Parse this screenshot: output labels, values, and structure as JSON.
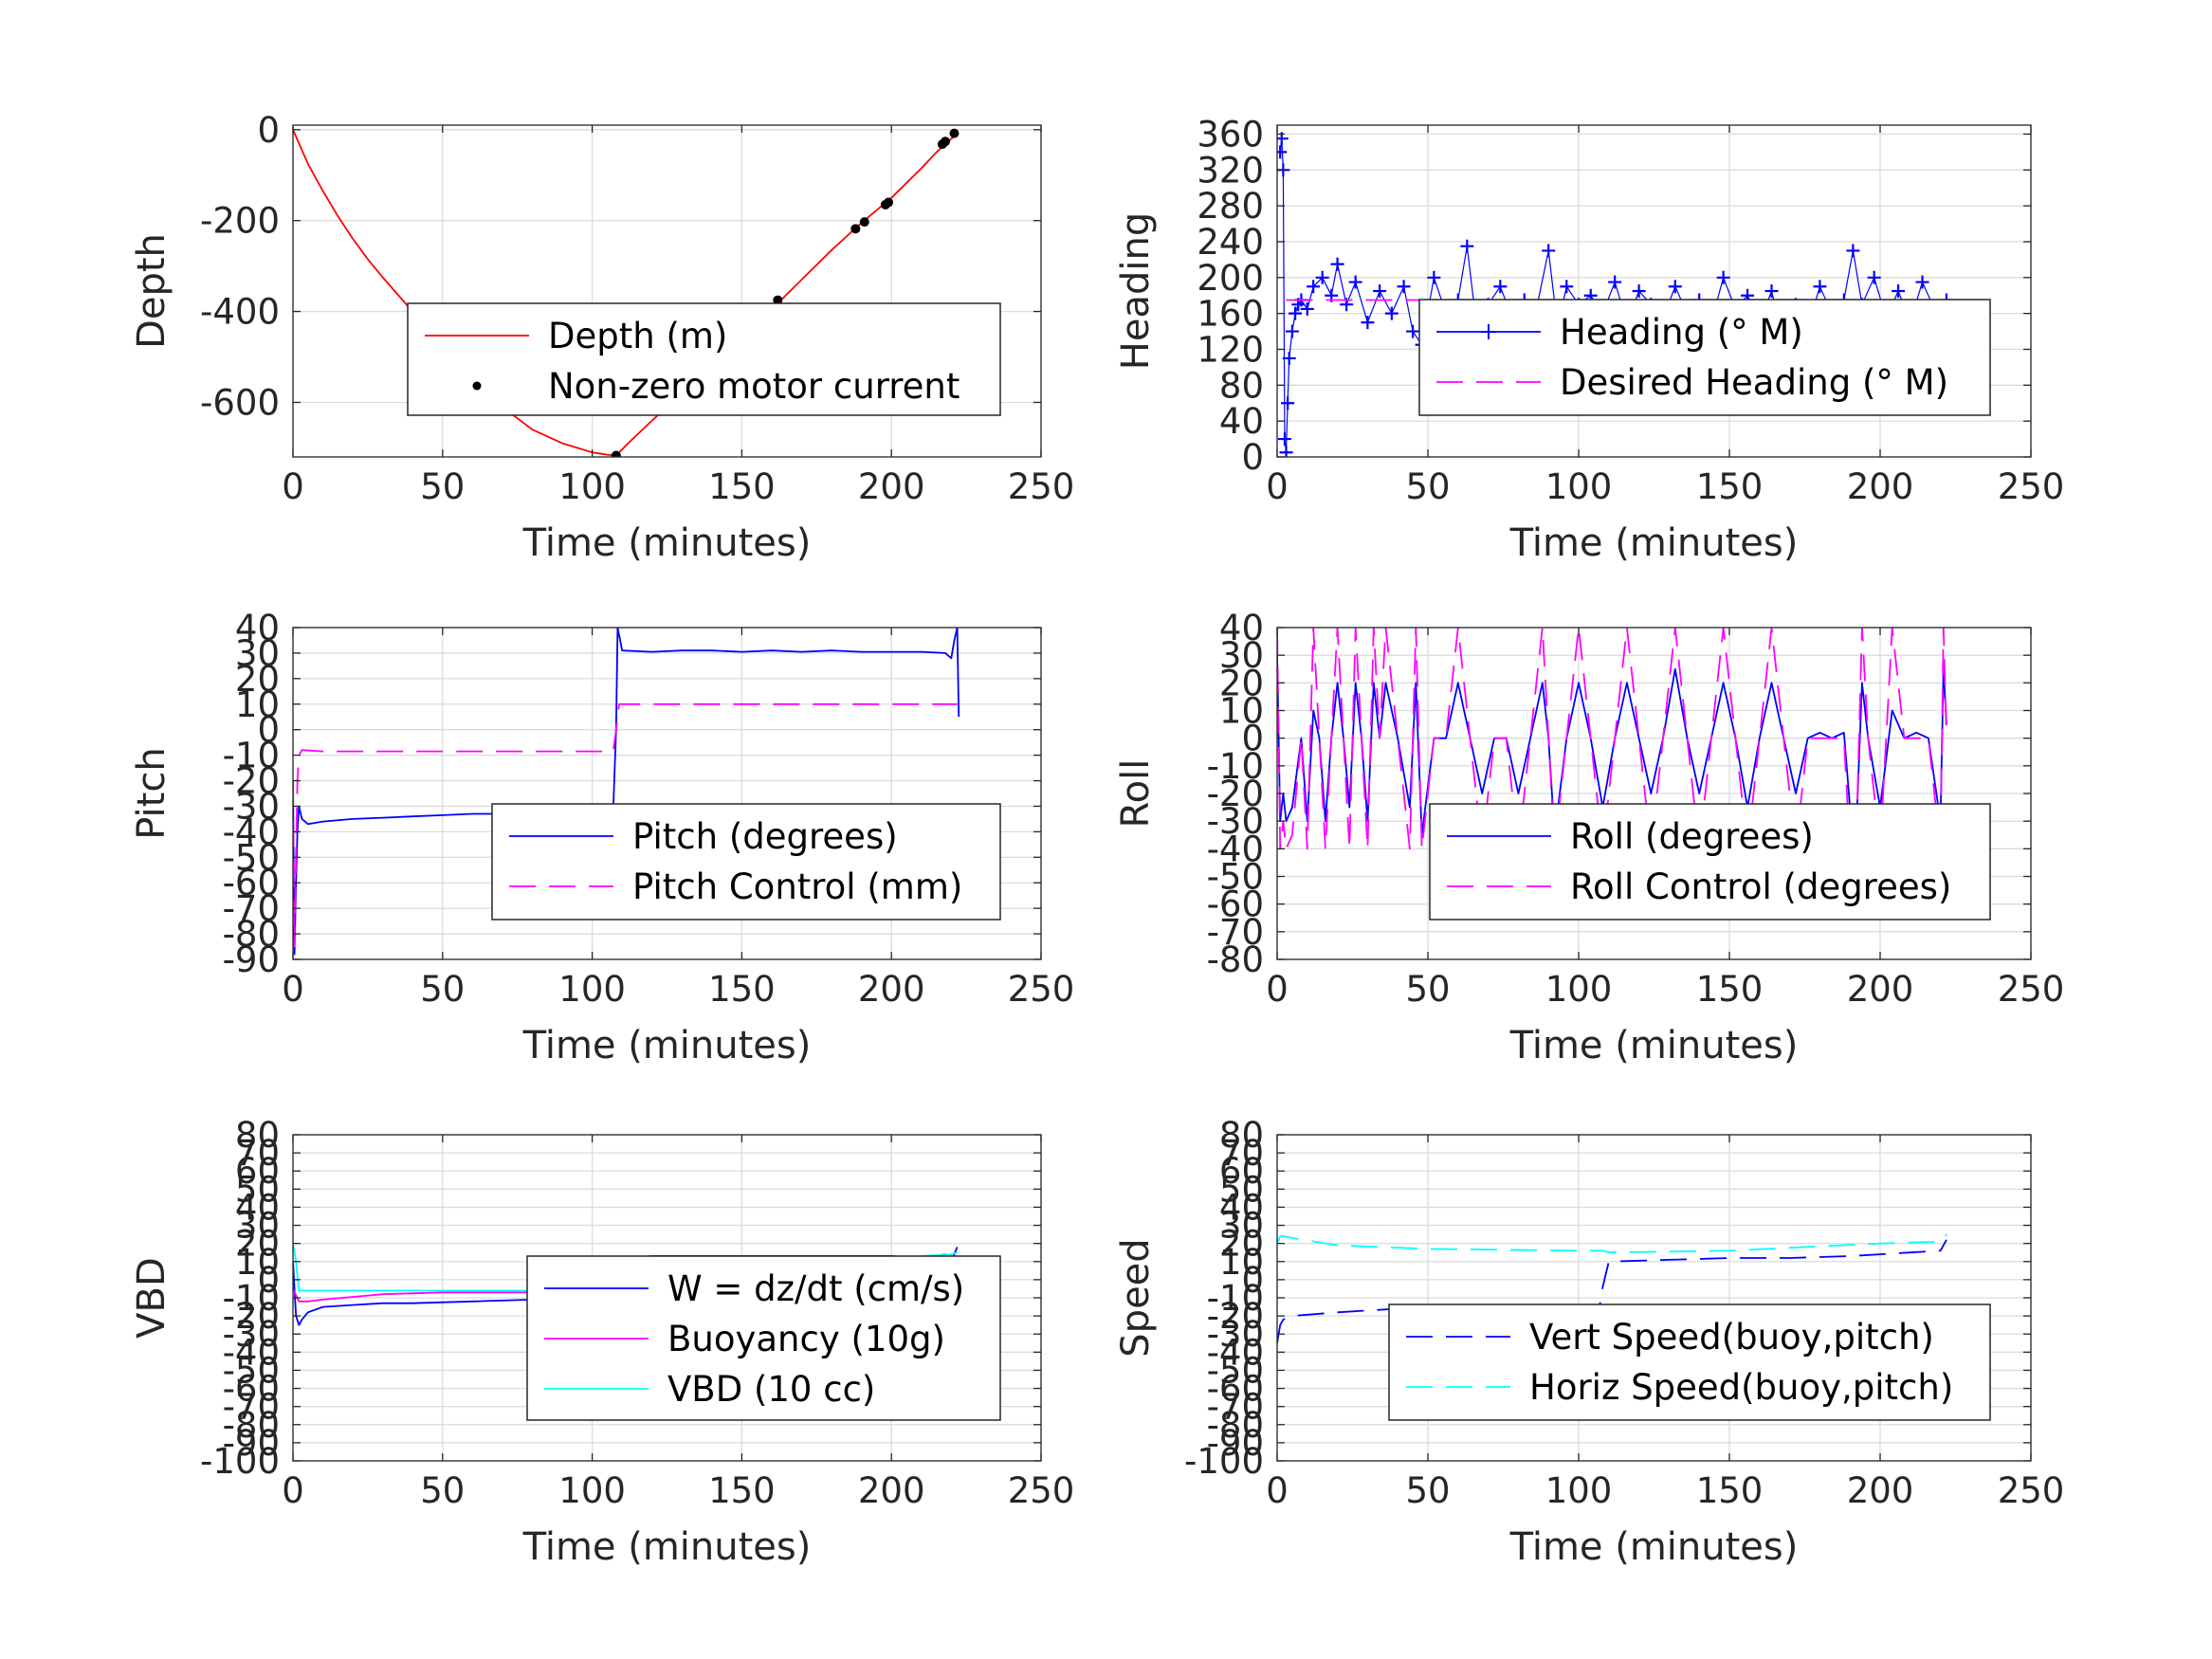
{
  "chart_data": [
    {
      "id": "depth",
      "type": "line",
      "xlabel": "Time (minutes)",
      "ylabel": "Depth",
      "xlim": [
        0,
        250
      ],
      "ylim": [
        -720,
        10
      ],
      "xticks": [
        0,
        50,
        100,
        150,
        200,
        250
      ],
      "yticks": [
        0,
        -200,
        -400,
        -600
      ],
      "legend_position": "center-right",
      "series": [
        {
          "name": "Depth (m)",
          "color": "#ff0000",
          "style": "solid",
          "marker": "none",
          "x": [
            0,
            2,
            5,
            10,
            15,
            20,
            25,
            30,
            40,
            50,
            60,
            70,
            80,
            90,
            100,
            105,
            108,
            112,
            120,
            130,
            140,
            150,
            160,
            170,
            180,
            190,
            200,
            210,
            215,
            220,
            222
          ],
          "y": [
            0,
            -30,
            -75,
            -135,
            -190,
            -240,
            -285,
            -325,
            -400,
            -480,
            -550,
            -610,
            -660,
            -690,
            -710,
            -715,
            -717,
            -690,
            -640,
            -580,
            -520,
            -455,
            -395,
            -330,
            -265,
            -205,
            -150,
            -85,
            -50,
            -20,
            -10
          ]
        },
        {
          "name": "Non-zero motor current",
          "color": "#000000",
          "style": "none",
          "marker": "dot",
          "x": [
            108,
            162,
            188,
            191,
            198,
            199,
            217,
            218,
            221
          ],
          "y": [
            -717,
            -375,
            -218,
            -203,
            -165,
            -160,
            -32,
            -26,
            -8
          ]
        }
      ]
    },
    {
      "id": "heading",
      "type": "scatter",
      "xlabel": "Time (minutes)",
      "ylabel": "Heading",
      "xlim": [
        0,
        250
      ],
      "ylim": [
        0,
        370
      ],
      "xticks": [
        0,
        50,
        100,
        150,
        200,
        250
      ],
      "yticks": [
        0,
        40,
        80,
        120,
        160,
        200,
        240,
        280,
        320,
        360
      ],
      "legend_position": "center-right",
      "series": [
        {
          "name": "Heading (° M)",
          "color": "#0000ff",
          "style": "none",
          "marker": "plus",
          "x": [
            1,
            1.5,
            2,
            2.5,
            3,
            3.5,
            4,
            5,
            6,
            7,
            8,
            10,
            12,
            15,
            18,
            20,
            23,
            26,
            30,
            34,
            38,
            42,
            45,
            48,
            52,
            56,
            60,
            63,
            66,
            70,
            74,
            78,
            82,
            86,
            90,
            93,
            96,
            100,
            104,
            108,
            112,
            116,
            120,
            124,
            128,
            132,
            136,
            140,
            144,
            148,
            152,
            156,
            160,
            164,
            168,
            172,
            176,
            180,
            184,
            188,
            191,
            194,
            198,
            202,
            206,
            210,
            214,
            218,
            222
          ],
          "y": [
            340,
            355,
            320,
            20,
            5,
            60,
            110,
            140,
            160,
            170,
            175,
            165,
            190,
            200,
            180,
            215,
            170,
            195,
            150,
            185,
            160,
            190,
            140,
            125,
            200,
            160,
            175,
            235,
            150,
            170,
            190,
            155,
            175,
            165,
            230,
            145,
            190,
            170,
            180,
            160,
            195,
            150,
            185,
            170,
            155,
            190,
            160,
            175,
            150,
            200,
            165,
            180,
            150,
            185,
            130,
            170,
            145,
            190,
            160,
            175,
            230,
            170,
            200,
            155,
            185,
            150,
            195,
            165,
            175
          ]
        },
        {
          "name": "Desired Heading (° M)",
          "color": "#ff00ff",
          "style": "dashed",
          "marker": "none",
          "x": [
            3,
            222
          ],
          "y": [
            175,
            175
          ]
        }
      ]
    },
    {
      "id": "pitch",
      "type": "line",
      "xlabel": "Time (minutes)",
      "ylabel": "Pitch",
      "xlim": [
        0,
        250
      ],
      "ylim": [
        -90,
        40
      ],
      "xticks": [
        0,
        50,
        100,
        150,
        200,
        250
      ],
      "yticks": [
        40,
        30,
        20,
        10,
        0,
        -10,
        -20,
        -30,
        -40,
        -50,
        -60,
        -70,
        -80,
        -90
      ],
      "legend_position": "center-right",
      "series": [
        {
          "name": "Pitch (degrees)",
          "color": "#0000ff",
          "style": "solid",
          "marker": "none",
          "x": [
            0,
            0.5,
            1,
            1.5,
            2,
            3,
            5,
            10,
            20,
            30,
            40,
            50,
            60,
            70,
            80,
            90,
            100,
            107,
            108,
            108.5,
            110,
            120,
            130,
            140,
            150,
            160,
            170,
            180,
            190,
            200,
            210,
            218,
            220,
            221,
            222,
            222.5
          ],
          "y": [
            -20,
            -88,
            -60,
            -40,
            -30,
            -35,
            -37,
            -36,
            -35,
            -34.5,
            -34,
            -33.5,
            -33,
            -33,
            -32.5,
            -32,
            -32,
            -32,
            0,
            40,
            31,
            30.5,
            31,
            31,
            30.5,
            31,
            30.5,
            31,
            30.5,
            30.5,
            30.5,
            30,
            28,
            35,
            40,
            5
          ]
        },
        {
          "name": "Pitch Control (mm)",
          "color": "#ff00ff",
          "style": "dashed",
          "marker": "none",
          "x": [
            0,
            0.5,
            1,
            1.5,
            2,
            3,
            10,
            50,
            100,
            107,
            108,
            109,
            150,
            200,
            222
          ],
          "y": [
            -20,
            -85,
            -50,
            -20,
            -10,
            -8,
            -8.5,
            -8.5,
            -8.5,
            -8.5,
            0,
            10,
            10,
            10,
            10
          ]
        }
      ]
    },
    {
      "id": "roll",
      "type": "line",
      "xlabel": "Time (minutes)",
      "ylabel": "Roll",
      "xlim": [
        0,
        250
      ],
      "ylim": [
        -80,
        40
      ],
      "xticks": [
        0,
        50,
        100,
        150,
        200,
        250
      ],
      "yticks": [
        40,
        30,
        20,
        10,
        0,
        -10,
        -20,
        -30,
        -40,
        -50,
        -60,
        -70,
        -80
      ],
      "legend_position": "center-right",
      "series": [
        {
          "name": "Roll (degrees)",
          "color": "#0000ff",
          "style": "solid",
          "marker": "none",
          "x": [
            0,
            1,
            2,
            3,
            5,
            8,
            10,
            12,
            14,
            16,
            18,
            20,
            22,
            24,
            26,
            28,
            30,
            32,
            34,
            36,
            40,
            44,
            46,
            48,
            52,
            56,
            60,
            64,
            68,
            72,
            76,
            80,
            84,
            88,
            90,
            92,
            96,
            100,
            104,
            108,
            112,
            116,
            120,
            124,
            128,
            132,
            136,
            140,
            144,
            148,
            152,
            156,
            160,
            164,
            168,
            172,
            176,
            180,
            184,
            188,
            190,
            192,
            194,
            196,
            200,
            204,
            208,
            212,
            216,
            220,
            221,
            222
          ],
          "y": [
            30,
            -30,
            -20,
            -30,
            -25,
            0,
            -30,
            10,
            0,
            -30,
            0,
            20,
            0,
            -25,
            20,
            0,
            -30,
            20,
            0,
            20,
            0,
            -25,
            20,
            -35,
            0,
            0,
            20,
            0,
            -20,
            0,
            0,
            -20,
            0,
            20,
            0,
            -35,
            0,
            20,
            0,
            -25,
            0,
            20,
            0,
            -20,
            0,
            25,
            0,
            -20,
            0,
            20,
            0,
            -25,
            0,
            20,
            0,
            -20,
            0,
            2,
            0,
            2,
            -25,
            -35,
            20,
            0,
            -25,
            10,
            0,
            2,
            0,
            -30,
            25,
            5
          ]
        },
        {
          "name": "Roll Control (degrees)",
          "color": "#ff00ff",
          "style": "dashed",
          "marker": "none",
          "x": [
            0,
            1,
            2,
            3,
            5,
            8,
            10,
            12,
            14,
            16,
            18,
            20,
            22,
            24,
            26,
            28,
            30,
            32,
            34,
            36,
            40,
            44,
            46,
            48,
            52,
            56,
            60,
            64,
            68,
            72,
            76,
            80,
            84,
            88,
            90,
            92,
            96,
            100,
            104,
            108,
            112,
            116,
            120,
            124,
            128,
            132,
            136,
            140,
            144,
            148,
            152,
            156,
            160,
            164,
            168,
            172,
            176,
            180,
            184,
            188,
            190,
            192,
            194,
            196,
            200,
            204,
            208,
            212,
            216,
            220,
            221,
            222
          ],
          "y": [
            40,
            -40,
            -30,
            -40,
            -35,
            0,
            -40,
            40,
            0,
            -40,
            0,
            40,
            0,
            -40,
            40,
            0,
            -40,
            40,
            0,
            40,
            0,
            -40,
            40,
            -40,
            0,
            0,
            40,
            0,
            -40,
            0,
            0,
            -40,
            0,
            40,
            0,
            -40,
            0,
            40,
            0,
            -40,
            0,
            40,
            0,
            -40,
            0,
            40,
            0,
            -40,
            0,
            40,
            0,
            -40,
            0,
            40,
            0,
            -40,
            0,
            0,
            0,
            0,
            -40,
            -40,
            40,
            0,
            -40,
            40,
            0,
            0,
            0,
            -40,
            40,
            0
          ]
        }
      ]
    },
    {
      "id": "vbd",
      "type": "line",
      "xlabel": "Time (minutes)",
      "ylabel": "VBD",
      "xlim": [
        0,
        250
      ],
      "ylim": [
        -100,
        80
      ],
      "xticks": [
        0,
        50,
        100,
        150,
        200,
        250
      ],
      "yticks": [
        80,
        70,
        60,
        50,
        40,
        30,
        20,
        10,
        0,
        -10,
        -20,
        -30,
        -40,
        -50,
        -60,
        -70,
        -80,
        -90,
        -100
      ],
      "ytick_labels": [
        "80",
        "70",
        "60",
        "50",
        "40",
        "30",
        "20",
        "10",
        "0",
        "-10",
        "-20",
        "-30",
        "-40",
        "-50",
        "-60",
        "-70",
        "-80",
        "-90",
        "-100"
      ],
      "legend_position": "center-right",
      "series": [
        {
          "name": "W = dz/dt (cm/s)",
          "color": "#0000ff",
          "style": "solid",
          "marker": "none",
          "x": [
            0,
            1,
            2,
            3,
            5,
            10,
            20,
            30,
            40,
            60,
            80,
            100,
            107,
            108,
            109,
            110,
            120,
            140,
            160,
            180,
            200,
            210,
            218,
            220,
            222
          ],
          "y": [
            10,
            -20,
            -25,
            -22,
            -18,
            -15,
            -14,
            -13,
            -13,
            -12,
            -11,
            -10,
            -10,
            -5,
            10,
            12,
            13,
            13,
            13,
            13,
            13,
            12,
            14,
            10,
            18
          ]
        },
        {
          "name": "Buoyancy (10g)",
          "color": "#ff00ff",
          "style": "solid",
          "marker": "none",
          "x": [
            0,
            2,
            5,
            10,
            30,
            50,
            80,
            100,
            107,
            110,
            130,
            150,
            180,
            200,
            220,
            222
          ],
          "y": [
            -5,
            -12,
            -12,
            -11,
            -8,
            -7,
            -7,
            -7,
            -7,
            5,
            6,
            6,
            7,
            8,
            9,
            12
          ]
        },
        {
          "name": "VBD (10 cc)",
          "color": "#00ffff",
          "style": "solid",
          "marker": "none",
          "x": [
            0,
            1,
            2,
            5,
            50,
            100,
            107,
            110,
            150,
            200,
            210,
            220,
            222
          ],
          "y": [
            20,
            10,
            -6,
            -6,
            -6,
            -6,
            -6,
            10,
            10,
            11,
            13,
            14,
            15
          ]
        }
      ]
    },
    {
      "id": "speed",
      "type": "line",
      "xlabel": "Time (minutes)",
      "ylabel": "Speed",
      "xlim": [
        0,
        250
      ],
      "ylim": [
        -100,
        80
      ],
      "xticks": [
        0,
        50,
        100,
        150,
        200,
        250
      ],
      "yticks": [
        80,
        70,
        60,
        50,
        40,
        30,
        20,
        10,
        0,
        -10,
        -20,
        -30,
        -40,
        -50,
        -60,
        -70,
        -80,
        -90,
        -100
      ],
      "ytick_labels": [
        "80",
        "70",
        "60",
        "50",
        "40",
        "30",
        "20",
        "10",
        "0",
        "-10",
        "-20",
        "-30",
        "-40",
        "-50",
        "-60",
        "-70",
        "-80",
        "-90",
        "-100"
      ],
      "legend_position": "center-right",
      "series": [
        {
          "name": "Vert Speed(buoy,pitch)",
          "color": "#0000ff",
          "style": "dashed",
          "marker": "none",
          "x": [
            0,
            1,
            2,
            5,
            20,
            40,
            60,
            80,
            100,
            107,
            108,
            110,
            130,
            150,
            170,
            190,
            210,
            220,
            222
          ],
          "y": [
            -35,
            -25,
            -22,
            -20,
            -18,
            -16,
            -15,
            -14,
            -14,
            -14,
            -4,
            10,
            11,
            12,
            12,
            13,
            15,
            16,
            22
          ]
        },
        {
          "name": "Horiz Speed(buoy,pitch)",
          "color": "#00ffff",
          "style": "dashed",
          "marker": "none",
          "x": [
            0,
            1,
            2,
            5,
            20,
            50,
            100,
            107,
            108,
            110,
            150,
            200,
            220,
            222
          ],
          "y": [
            20,
            24,
            24,
            23,
            19,
            17,
            16,
            16,
            16,
            15,
            16,
            20,
            21,
            25
          ]
        }
      ]
    }
  ]
}
